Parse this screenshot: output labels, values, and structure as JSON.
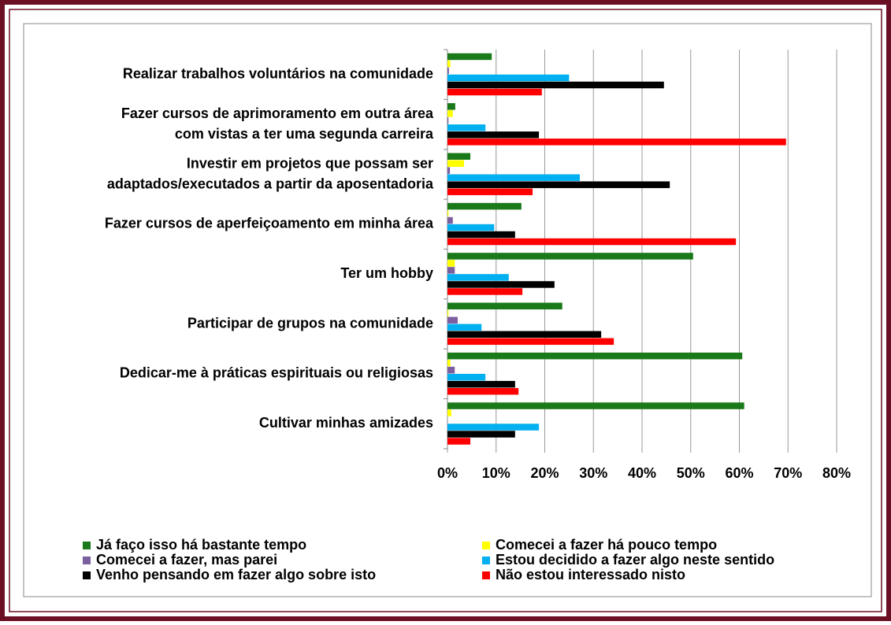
{
  "chart_data": {
    "type": "bar",
    "orientation": "horizontal",
    "categories": [
      "Realizar trabalhos voluntários na comunidade",
      "Fazer cursos de aprimoramento em outra área\ncom vistas a ter uma segunda carreira",
      "Investir em projetos que possam ser\nadaptados/executados a partir da aposentadoria",
      "Fazer cursos de aperfeiçoamento em minha área",
      "Ter um hobby",
      "Participar de grupos na comunidade",
      "Dedicar-me à práticas espirituais ou religiosas",
      "Cultivar minhas amizades"
    ],
    "series": [
      {
        "name": "Já faço isso há bastante tempo",
        "color": "#1a7a1a",
        "values": [
          9.1,
          1.6,
          4.7,
          15.2,
          50.5,
          23.6,
          60.6,
          61
        ]
      },
      {
        "name": "Comecei a fazer há pouco tempo",
        "color": "#ffff00",
        "values": [
          0.6,
          1.1,
          3.4,
          0.2,
          1.5,
          0.2,
          0.6,
          0.8
        ]
      },
      {
        "name": "Comecei a fazer, mas parei",
        "color": "#7b5fa0",
        "values": [
          0.3,
          0.2,
          0.5,
          1.1,
          1.5,
          2.1,
          1.5,
          0
        ]
      },
      {
        "name": "Estou decidido a fazer algo neste sentido",
        "color": "#00b0f0",
        "values": [
          25,
          7.8,
          27.2,
          9.6,
          12.6,
          7,
          7.8,
          18.8
        ]
      },
      {
        "name": "Venho pensando em fazer algo sobre isto",
        "color": "#000000",
        "values": [
          44.5,
          18.8,
          45.7,
          13.9,
          22,
          31.6,
          13.9,
          13.9
        ]
      },
      {
        "name": "Não estou interessado nisto",
        "color": "#ff0000",
        "values": [
          19.4,
          69.6,
          17.5,
          59.3,
          15.4,
          34.2,
          14.6,
          4.7
        ]
      }
    ],
    "xlim": [
      0,
      80
    ],
    "xticks": [
      {
        "value": 0,
        "label": "0%"
      },
      {
        "value": 10,
        "label": "10%"
      },
      {
        "value": 20,
        "label": "20%"
      },
      {
        "value": 30,
        "label": "30%"
      },
      {
        "value": 40,
        "label": "40%"
      },
      {
        "value": 50,
        "label": "50%"
      },
      {
        "value": 60,
        "label": "60%"
      },
      {
        "value": 70,
        "label": "70%"
      },
      {
        "value": 80,
        "label": "80%"
      }
    ],
    "grid": true,
    "legend": "bottom"
  }
}
